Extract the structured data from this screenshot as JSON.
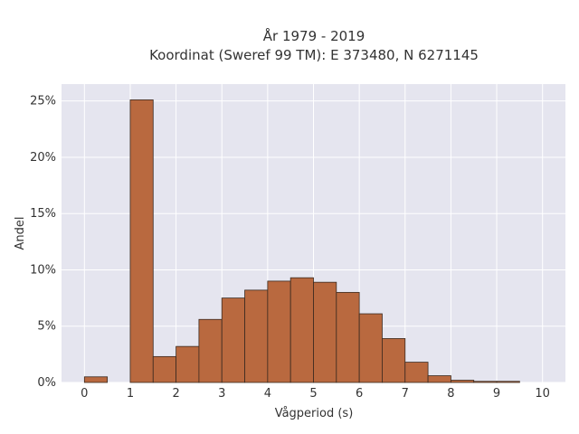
{
  "chart_data": {
    "type": "bar",
    "title_lines": [
      "År 1979 - 2019",
      "Koordinat (Sweref 99 TM): E 373480, N 6271145"
    ],
    "xlabel": "Vågperiod (s)",
    "ylabel": "Andel",
    "bin_width": 0.5,
    "bins": [
      {
        "start": 0.0,
        "value": 0.5
      },
      {
        "start": 0.5,
        "value": 0.0
      },
      {
        "start": 1.0,
        "value": 25.1
      },
      {
        "start": 1.5,
        "value": 2.3
      },
      {
        "start": 2.0,
        "value": 3.2
      },
      {
        "start": 2.5,
        "value": 5.6
      },
      {
        "start": 3.0,
        "value": 7.5
      },
      {
        "start": 3.5,
        "value": 8.2
      },
      {
        "start": 4.0,
        "value": 9.0
      },
      {
        "start": 4.5,
        "value": 9.3
      },
      {
        "start": 5.0,
        "value": 8.9
      },
      {
        "start": 5.5,
        "value": 8.0
      },
      {
        "start": 6.0,
        "value": 6.1
      },
      {
        "start": 6.5,
        "value": 3.9
      },
      {
        "start": 7.0,
        "value": 1.8
      },
      {
        "start": 7.5,
        "value": 0.6
      },
      {
        "start": 8.0,
        "value": 0.2
      },
      {
        "start": 8.5,
        "value": 0.1
      },
      {
        "start": 9.0,
        "value": 0.1
      },
      {
        "start": 9.5,
        "value": 0.0
      }
    ],
    "xticks": [
      "0",
      "1",
      "2",
      "3",
      "4",
      "5",
      "6",
      "7",
      "8",
      "9",
      "10"
    ],
    "yticks": [
      "0%",
      "5%",
      "10%",
      "15%",
      "20%",
      "25%"
    ],
    "xlim": [
      -0.5,
      10.5
    ],
    "ylim": [
      0,
      26.5
    ],
    "ytick_values": [
      0,
      5,
      10,
      15,
      20,
      25
    ],
    "xtick_values": [
      0,
      1,
      2,
      3,
      4,
      5,
      6,
      7,
      8,
      9,
      10
    ],
    "grid": true,
    "colors": {
      "bar_fill": "#b9693f",
      "bar_stroke": "#3a2a20",
      "plot_bg": "#e5e5ef",
      "grid": "#ffffff"
    }
  }
}
